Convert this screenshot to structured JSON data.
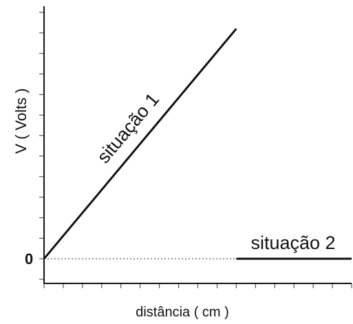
{
  "chart_data": {
    "type": "line",
    "xlabel": "distância ( cm )",
    "ylabel": "V ( Volts )",
    "y_tick_labels": [
      {
        "value": 0,
        "label": "0"
      }
    ],
    "grid": false,
    "xlim": [
      0,
      16
    ],
    "ylim": [
      -1.2,
      12.3
    ],
    "x_minor_ticks": [
      0,
      1,
      2,
      3,
      4,
      5,
      6,
      7,
      8,
      9,
      10,
      11,
      12,
      13,
      14,
      15,
      16
    ],
    "y_minor_ticks": [
      -1,
      0,
      1,
      2,
      3,
      4,
      5,
      6,
      7,
      8,
      9,
      10,
      11,
      12
    ],
    "zero_line": {
      "style": "dotted",
      "x_range": [
        0,
        10
      ]
    },
    "series": [
      {
        "name": "situação 1",
        "x": [
          0,
          10
        ],
        "y": [
          0,
          11.2
        ]
      },
      {
        "name": "situação 2",
        "x": [
          10,
          16
        ],
        "y": [
          0,
          0
        ]
      }
    ]
  }
}
